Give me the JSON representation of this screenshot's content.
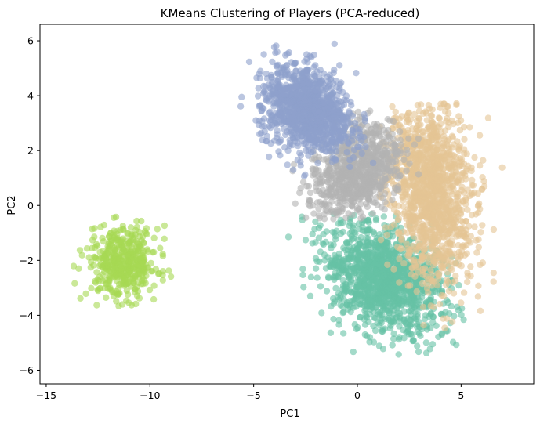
{
  "chart_data": {
    "type": "scatter",
    "title": "KMeans Clustering of Players (PCA-reduced)",
    "xlabel": "PC1",
    "ylabel": "PC2",
    "xlim": [
      -15.3,
      8.5
    ],
    "ylim": [
      -6.5,
      6.6
    ],
    "xticks": [
      -15,
      -10,
      -5,
      0,
      5
    ],
    "yticks": [
      -6,
      -4,
      -2,
      0,
      2,
      4,
      6
    ],
    "grid": false,
    "legend": "none",
    "marker_alpha": 0.6,
    "clusters": [
      {
        "color": "#8da0cb",
        "center": [
          -2.4,
          3.5
        ],
        "spread": [
          1.1,
          0.75
        ],
        "rotation_deg": -20,
        "count": 1100,
        "extent": {
          "x": [
            -6.2,
            1.3
          ],
          "y": [
            1.0,
            6.0
          ]
        }
      },
      {
        "color": "#e5c494",
        "center": [
          3.5,
          0.5
        ],
        "spread": [
          1.0,
          1.7
        ],
        "rotation_deg": 12,
        "count": 1300,
        "extent": {
          "x": [
            1.0,
            7.6
          ],
          "y": [
            -5.9,
            3.8
          ]
        }
      },
      {
        "color": "#b3b3b3",
        "center": [
          0.0,
          1.3
        ],
        "spread": [
          1.1,
          0.8
        ],
        "rotation_deg": 25,
        "count": 800,
        "extent": {
          "x": [
            -3.5,
            3.0
          ],
          "y": [
            -0.5,
            3.5
          ]
        }
      },
      {
        "color": "#66c2a5",
        "center": [
          1.3,
          -2.7
        ],
        "spread": [
          1.5,
          0.9
        ],
        "rotation_deg": -20,
        "count": 1300,
        "extent": {
          "x": [
            -3.6,
            5.3
          ],
          "y": [
            -5.5,
            -0.3
          ]
        }
      },
      {
        "color": "#a6d854",
        "center": [
          -11.3,
          -2.1
        ],
        "spread": [
          0.85,
          0.65
        ],
        "rotation_deg": 0,
        "count": 450,
        "extent": {
          "x": [
            -14.1,
            -8.8
          ],
          "y": [
            -3.9,
            -0.4
          ]
        }
      }
    ]
  }
}
